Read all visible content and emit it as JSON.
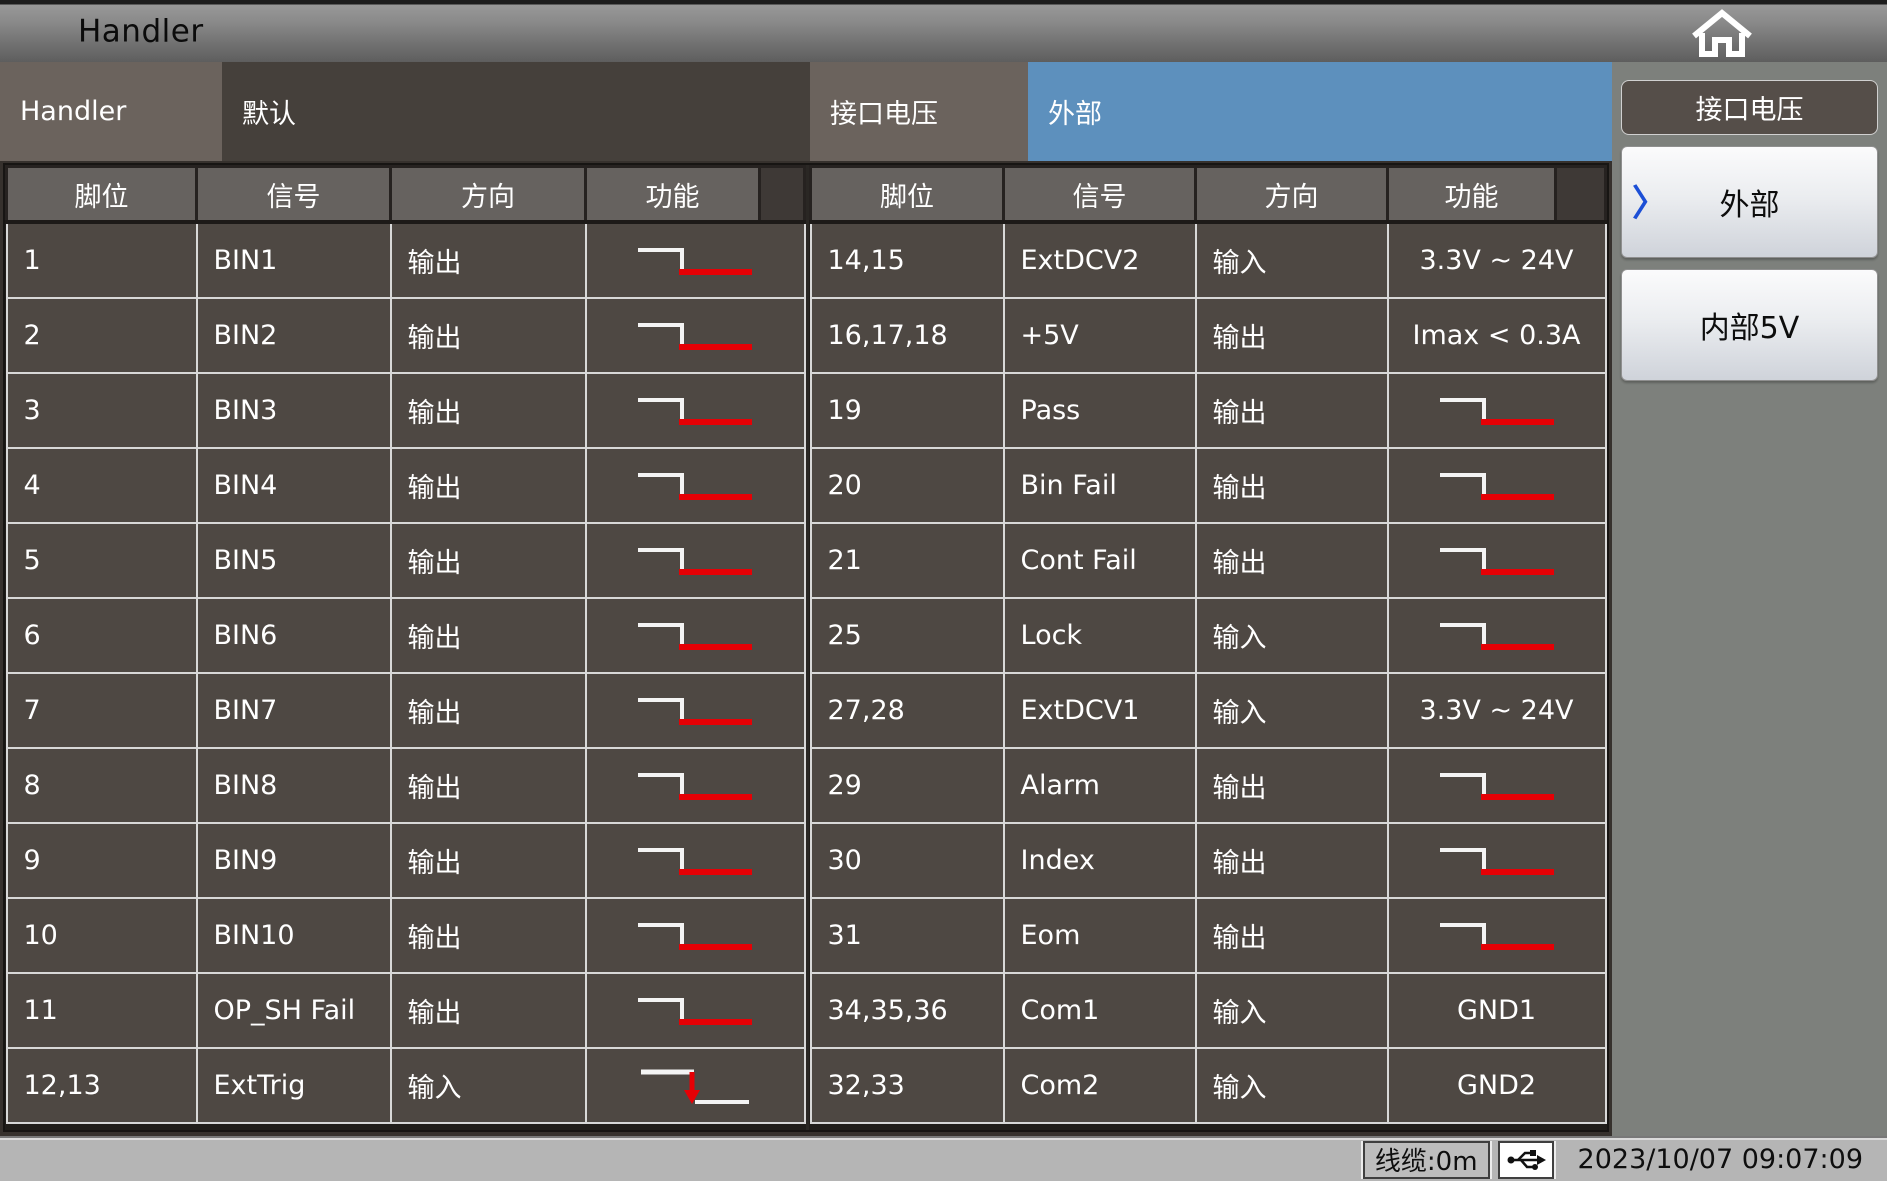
{
  "titlebar": {
    "title": "Handler"
  },
  "tabs": {
    "handler_label": "Handler",
    "handler_value": "默认",
    "iface_voltage_label": "接口电压",
    "iface_voltage_value": "外部"
  },
  "sidebar": {
    "header": "接口电压",
    "options": [
      {
        "label": "外部",
        "selected": true
      },
      {
        "label": "内部5V",
        "selected": false
      }
    ]
  },
  "table": {
    "headers": [
      "脚位",
      "信号",
      "方向",
      "功能"
    ],
    "left_rows": [
      {
        "pin": "1",
        "signal": "BIN1",
        "dir": "输出",
        "func": {
          "type": "active_low"
        }
      },
      {
        "pin": "2",
        "signal": "BIN2",
        "dir": "输出",
        "func": {
          "type": "active_low"
        }
      },
      {
        "pin": "3",
        "signal": "BIN3",
        "dir": "输出",
        "func": {
          "type": "active_low"
        }
      },
      {
        "pin": "4",
        "signal": "BIN4",
        "dir": "输出",
        "func": {
          "type": "active_low"
        }
      },
      {
        "pin": "5",
        "signal": "BIN5",
        "dir": "输出",
        "func": {
          "type": "active_low"
        }
      },
      {
        "pin": "6",
        "signal": "BIN6",
        "dir": "输出",
        "func": {
          "type": "active_low"
        }
      },
      {
        "pin": "7",
        "signal": "BIN7",
        "dir": "输出",
        "func": {
          "type": "active_low"
        }
      },
      {
        "pin": "8",
        "signal": "BIN8",
        "dir": "输出",
        "func": {
          "type": "active_low"
        }
      },
      {
        "pin": "9",
        "signal": "BIN9",
        "dir": "输出",
        "func": {
          "type": "active_low"
        }
      },
      {
        "pin": "10",
        "signal": "BIN10",
        "dir": "输出",
        "func": {
          "type": "active_low"
        }
      },
      {
        "pin": "11",
        "signal": "OP_SH Fail",
        "dir": "输出",
        "func": {
          "type": "active_low"
        }
      },
      {
        "pin": "12,13",
        "signal": "ExtTrig",
        "dir": "输入",
        "func": {
          "type": "falling_edge"
        }
      }
    ],
    "right_rows": [
      {
        "pin": "14,15",
        "signal": "ExtDCV2",
        "dir": "输入",
        "func": {
          "type": "text",
          "value": "3.3V ~ 24V"
        }
      },
      {
        "pin": "16,17,18",
        "signal": "+5V",
        "dir": "输出",
        "func": {
          "type": "text",
          "value": "Imax < 0.3A"
        }
      },
      {
        "pin": "19",
        "signal": "Pass",
        "dir": "输出",
        "func": {
          "type": "active_low"
        }
      },
      {
        "pin": "20",
        "signal": "Bin Fail",
        "dir": "输出",
        "func": {
          "type": "active_low"
        }
      },
      {
        "pin": "21",
        "signal": "Cont Fail",
        "dir": "输出",
        "func": {
          "type": "active_low"
        }
      },
      {
        "pin": "25",
        "signal": "Lock",
        "dir": "输入",
        "func": {
          "type": "active_low"
        }
      },
      {
        "pin": "27,28",
        "signal": "ExtDCV1",
        "dir": "输入",
        "func": {
          "type": "text",
          "value": "3.3V ~ 24V"
        }
      },
      {
        "pin": "29",
        "signal": "Alarm",
        "dir": "输出",
        "func": {
          "type": "active_low"
        }
      },
      {
        "pin": "30",
        "signal": "Index",
        "dir": "输出",
        "func": {
          "type": "active_low"
        }
      },
      {
        "pin": "31",
        "signal": "Eom",
        "dir": "输出",
        "func": {
          "type": "active_low"
        }
      },
      {
        "pin": "34,35,36",
        "signal": "Com1",
        "dir": "输入",
        "func": {
          "type": "text",
          "value": "GND1"
        }
      },
      {
        "pin": "32,33",
        "signal": "Com2",
        "dir": "输入",
        "func": {
          "type": "text",
          "value": "GND2"
        }
      }
    ]
  },
  "statusbar": {
    "cable_length": "线缆:0m",
    "datetime": "2023/10/07 09:07:09"
  },
  "icons": {
    "home": "home-icon",
    "usb": "usb-icon",
    "selected_chevron": "〉",
    "active_low_waveform": "active-low-waveform-icon",
    "falling_edge_waveform": "falling-edge-trigger-icon"
  },
  "colors": {
    "accent_blue": "#5d90bd",
    "signal_red": "#e60005",
    "cell_bg": "#4e4843",
    "header_bg": "#66625f",
    "sidebar_bg": "#7d807c"
  }
}
